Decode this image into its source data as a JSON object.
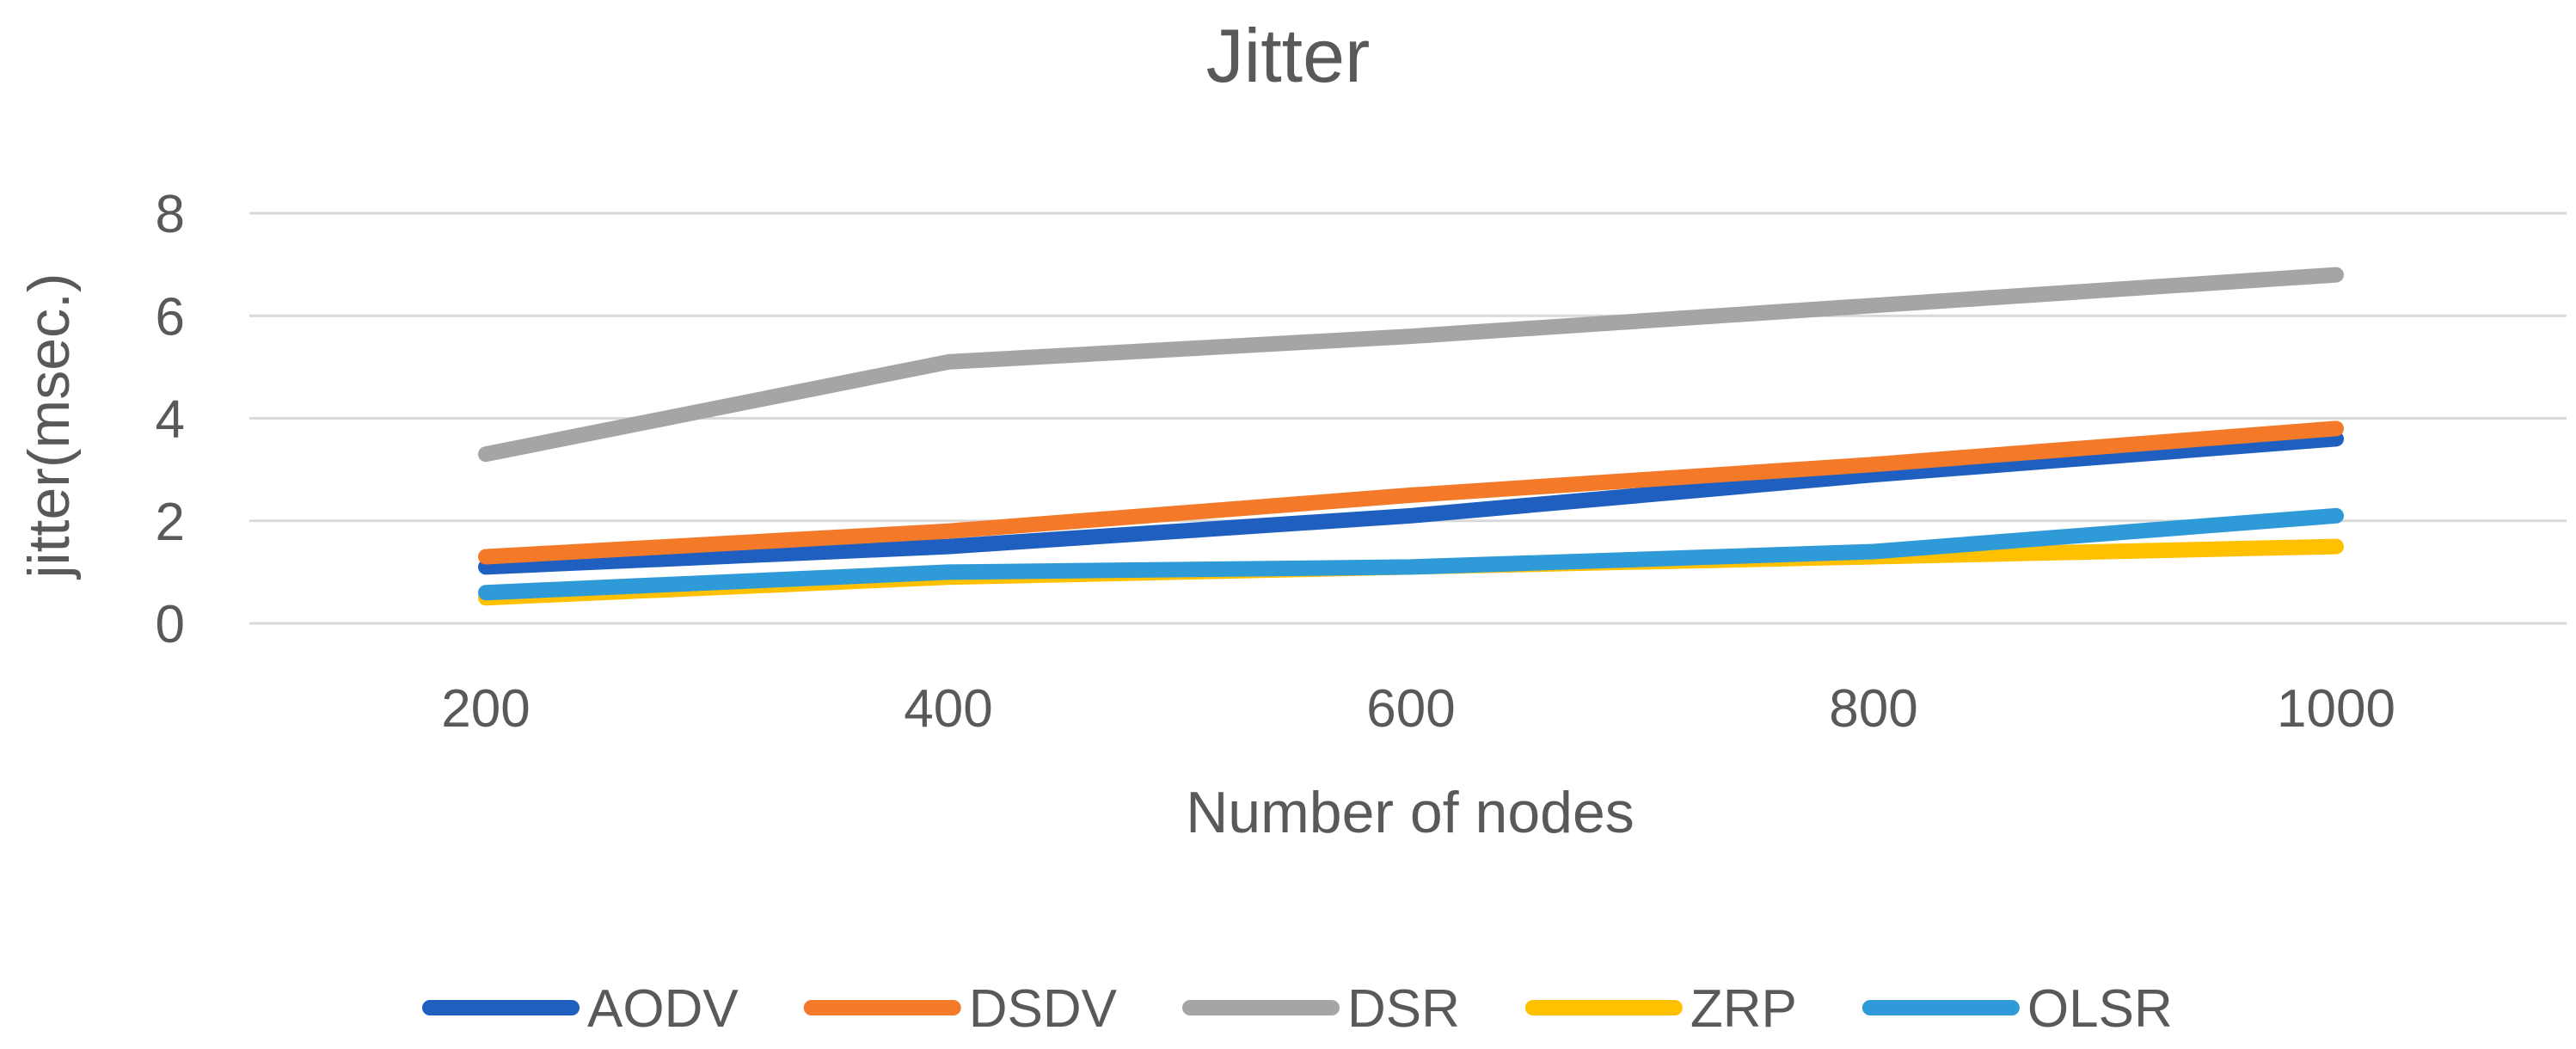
{
  "chart_data": {
    "type": "line",
    "title": "Jitter",
    "xlabel": "Number of nodes",
    "ylabel": "jitter(msec.)",
    "categories": [
      "200",
      "400",
      "600",
      "800",
      "1000"
    ],
    "ylim": [
      0,
      8
    ],
    "yticks": [
      0,
      2,
      4,
      6,
      8
    ],
    "grid": true,
    "legend_position": "bottom",
    "series": [
      {
        "name": "AODV",
        "color": "#1f5fbf",
        "values": [
          1.1,
          1.5,
          2.1,
          2.9,
          3.6
        ]
      },
      {
        "name": "DSDV",
        "color": "#f47a2a",
        "values": [
          1.3,
          1.8,
          2.5,
          3.1,
          3.8
        ]
      },
      {
        "name": "DSR",
        "color": "#a5a5a5",
        "values": [
          3.3,
          5.1,
          5.6,
          6.2,
          6.8
        ]
      },
      {
        "name": "ZRP",
        "color": "#ffc000",
        "values": [
          0.5,
          0.9,
          1.1,
          1.3,
          1.5
        ]
      },
      {
        "name": "OLSR",
        "color": "#2e9ad8",
        "values": [
          0.6,
          1.0,
          1.1,
          1.4,
          2.1
        ]
      }
    ]
  }
}
